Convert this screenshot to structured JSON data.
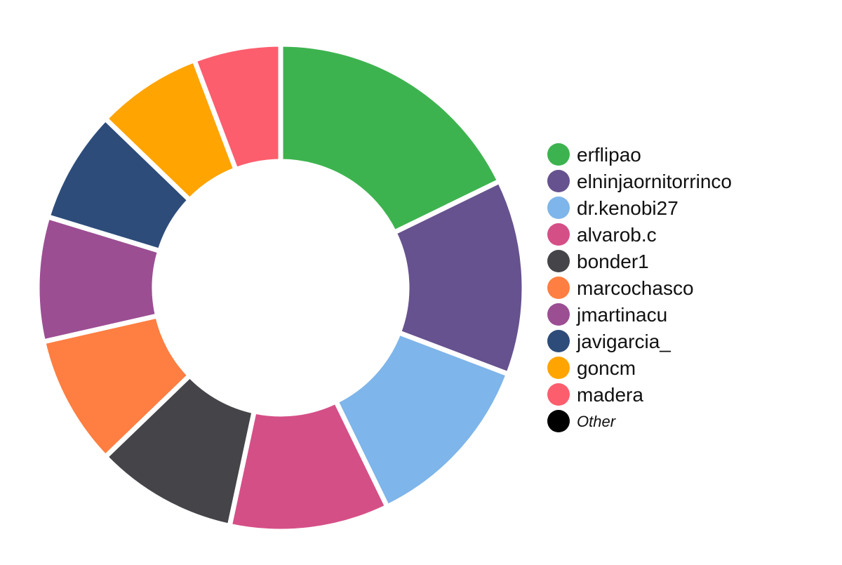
{
  "chart_data": {
    "type": "pie",
    "style": "donut",
    "slices": [
      {
        "label": "erflipao",
        "value": 18.5,
        "color": "#3DB34F"
      },
      {
        "label": "elninjaornitorrinco",
        "value": 13.5,
        "color": "#66528F"
      },
      {
        "label": "dr.kenobi27",
        "value": 12.5,
        "color": "#7EB5EA"
      },
      {
        "label": "alvarob.c",
        "value": 11.0,
        "color": "#D54F87"
      },
      {
        "label": "bonder1",
        "value": 9.8,
        "color": "#454449"
      },
      {
        "label": "marcochasco",
        "value": 9.0,
        "color": "#FF7E41"
      },
      {
        "label": "jmartinacu",
        "value": 8.6,
        "color": "#9C4E93"
      },
      {
        "label": "javigarcia_",
        "value": 7.8,
        "color": "#2D4C7A"
      },
      {
        "label": "goncm",
        "value": 7.3,
        "color": "#FFA400"
      },
      {
        "label": "madera",
        "value": 6.0,
        "color": "#FC5E6E"
      }
    ],
    "legend": {
      "placement": "right",
      "items": [
        {
          "label": "erflipao",
          "color": "#3DB34F"
        },
        {
          "label": "elninjaornitorrinco",
          "color": "#66528F"
        },
        {
          "label": "dr.kenobi27",
          "color": "#7EB5EA"
        },
        {
          "label": "alvarob.c",
          "color": "#D54F87"
        },
        {
          "label": "bonder1",
          "color": "#454449"
        },
        {
          "label": "marcochasco",
          "color": "#FF7E41"
        },
        {
          "label": "jmartinacu",
          "color": "#9C4E93"
        },
        {
          "label": "javigarcia_",
          "color": "#2D4C7A"
        },
        {
          "label": "goncm",
          "color": "#FFA400"
        },
        {
          "label": "madera",
          "color": "#FC5E6E"
        },
        {
          "label": "Other",
          "color": "#000000",
          "italic": true
        }
      ]
    }
  }
}
